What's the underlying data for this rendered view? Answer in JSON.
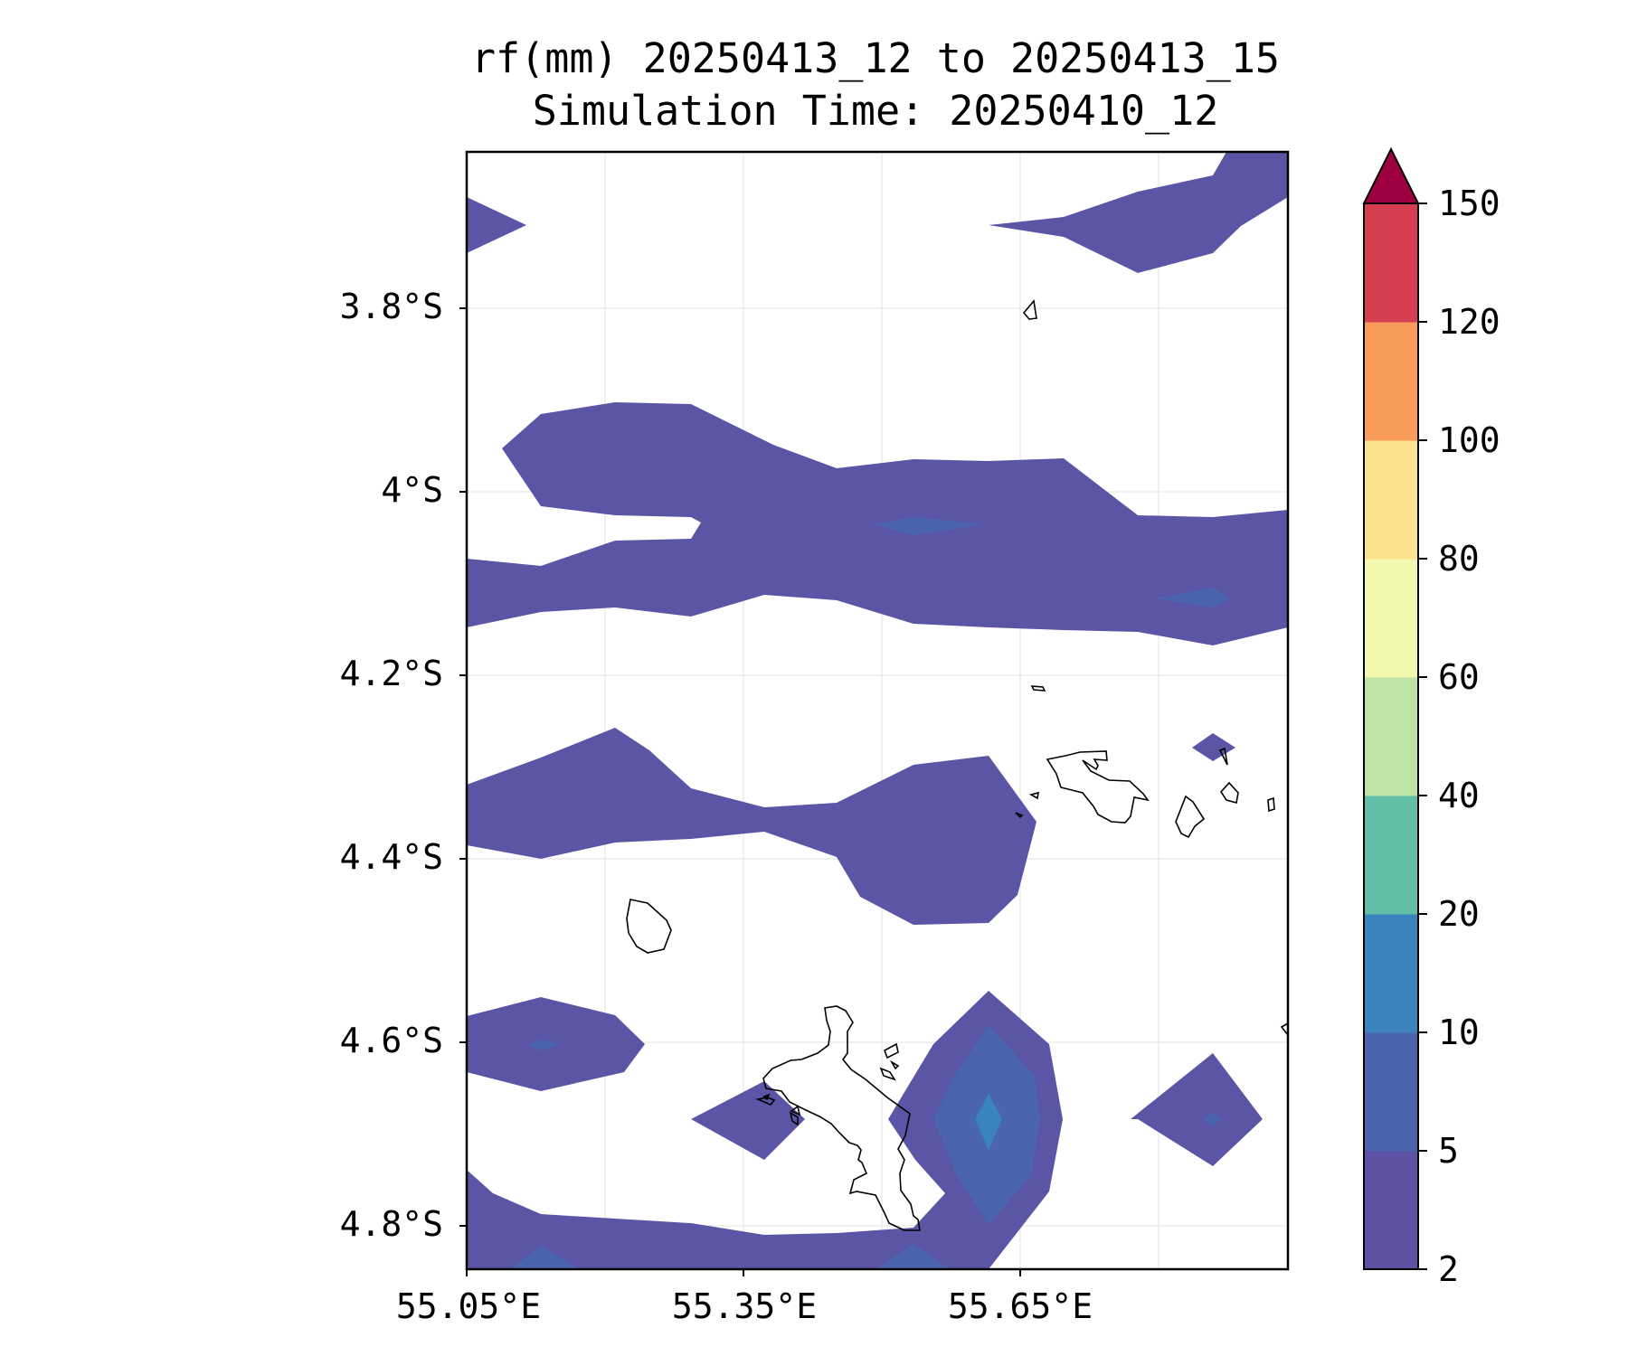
{
  "chart_data": {
    "type": "contour-map",
    "title": "rf(mm) 20250413_12 to 20250413_15",
    "subtitle": "Simulation Time: 20250410_12",
    "variable": "rf(mm)",
    "x_ticks": [
      "55.05°E",
      "55.35°E",
      "55.65°E"
    ],
    "y_ticks": [
      "3.8°S",
      "4°S",
      "4.2°S",
      "4.4°S",
      "4.6°S",
      "4.8°S"
    ],
    "colorbar": {
      "levels": [
        2,
        5,
        10,
        20,
        40,
        60,
        80,
        100,
        120,
        150
      ],
      "tick_labels": [
        "2",
        "5",
        "10",
        "20",
        "40",
        "60",
        "80",
        "100",
        "120",
        "150"
      ],
      "colors": [
        "#5e51a4",
        "#4b64ae",
        "#3b83bc",
        "#62bea8",
        "#bfe3a4",
        "#f2f8ad",
        "#fbe18e",
        "#f99c5b",
        "#d53e4f"
      ],
      "extend_color": "#9e0142"
    },
    "rain_colors": {
      "level_2_5": "#5b55a6",
      "level_5_10": "#4b64ae",
      "level_10_20": "#3883c0"
    },
    "coast_color": "#000000"
  }
}
